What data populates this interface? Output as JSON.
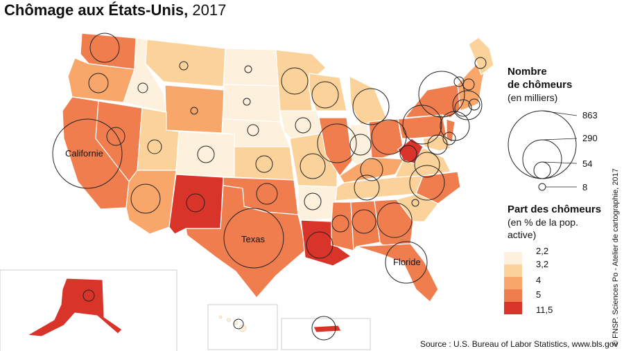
{
  "title": {
    "bold": "Chômage aux États-Unis,",
    "year": " 2017"
  },
  "legend_size": {
    "title_line1": "Nombre",
    "title_line2": "de chômeurs",
    "subtitle": "(en milliers)",
    "values": [
      "863",
      "290",
      "54",
      "8"
    ]
  },
  "legend_color": {
    "title": "Part des chômeurs",
    "subtitle_line1": "(en % de la pop.",
    "subtitle_line2": "active)",
    "classes": [
      {
        "label": "2,2",
        "color": "#fdf0dc"
      },
      {
        "label": "3,2",
        "color": "#fbd39a"
      },
      {
        "label": "4",
        "color": "#f9a66a"
      },
      {
        "label": "5",
        "color": "#f07d4e"
      },
      {
        "label": "11,5",
        "color": "#d9342a"
      }
    ]
  },
  "labels": {
    "california": "Californie",
    "texas": "Texas",
    "florida": "Floride"
  },
  "source": "Source : U.S. Bureau of Labor Statistics, www.bls.gov",
  "credit": "© FNSP. Sciences Po - Atelier de cartographie, 2017"
}
